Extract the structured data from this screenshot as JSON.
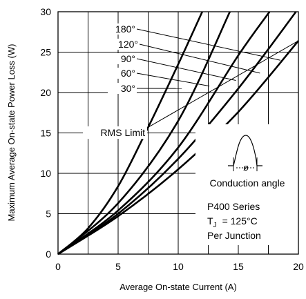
{
  "chart_data": {
    "type": "line",
    "title": "",
    "xlabel": "Average On-state Current (A)",
    "ylabel": "Maximum Average On-state Power Loss (W)",
    "xlim": [
      0,
      20
    ],
    "ylim": [
      0,
      30
    ],
    "xticks": [
      0,
      5,
      10,
      15,
      20
    ],
    "yticks": [
      0,
      5,
      10,
      15,
      20,
      25,
      30
    ],
    "grid": true,
    "series": [
      {
        "name": "180°",
        "x": [
          0,
          5,
          10,
          15,
          20
        ],
        "y": [
          0,
          4.7,
          10.5,
          17.6,
          26.4
        ]
      },
      {
        "name": "120°",
        "x": [
          0,
          5,
          10,
          15,
          19.8
        ],
        "y": [
          0,
          5.0,
          11.8,
          20.5,
          30
        ]
      },
      {
        "name": "90°",
        "x": [
          0,
          5,
          10,
          15,
          17.6
        ],
        "y": [
          0,
          5.4,
          13.2,
          24.6,
          30
        ]
      },
      {
        "name": "60°",
        "x": [
          0,
          5,
          10,
          14.3
        ],
        "y": [
          0,
          6.3,
          16.5,
          30
        ]
      },
      {
        "name": "30°",
        "x": [
          0,
          2.5,
          5,
          7.5,
          10,
          12
        ],
        "y": [
          0,
          3.2,
          8.4,
          15.7,
          23.5,
          30
        ]
      },
      {
        "name": "RMS Limit",
        "x": [
          7.5,
          20
        ],
        "y": [
          15.7,
          26.4
        ]
      }
    ],
    "annotations": {
      "angle_labels": [
        "180°",
        "120°",
        "90°",
        "60°",
        "30°"
      ],
      "rms_label": "RMS Limit",
      "inset_caption": "Conduction angle",
      "inset_symbol": "ø",
      "series_text": "P400  Series",
      "tj_symbol": "T",
      "tj_subscript": "J",
      "tj_value": "=  125°C",
      "per_junction": "Per  Junction"
    }
  }
}
